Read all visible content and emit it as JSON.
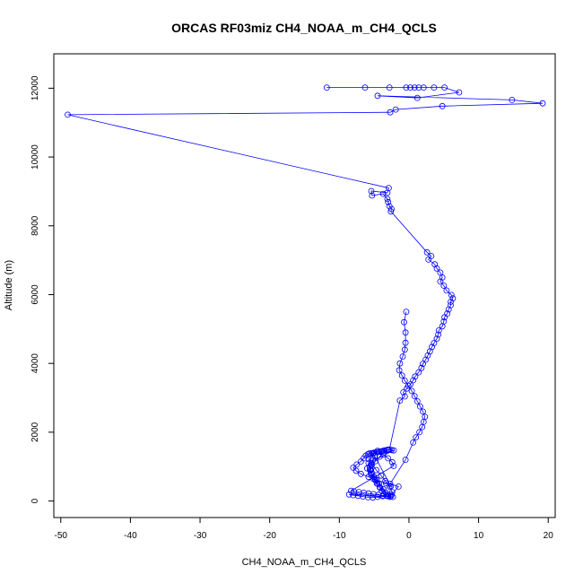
{
  "chart_data": {
    "type": "scatter",
    "title": "ORCAS RF03miz CH4_NOAA_m_CH4_QCLS",
    "xlabel": "CH4_NOAA_m_CH4_QCLS",
    "ylabel": "Altitude (m)",
    "xlim": [
      -51,
      21
    ],
    "ylim": [
      -480,
      13000
    ],
    "xticks": [
      -50,
      -40,
      -30,
      -20,
      -10,
      0,
      10,
      20
    ],
    "yticks": [
      0,
      2000,
      4000,
      6000,
      8000,
      10000,
      12000
    ],
    "grid": false,
    "legend": "none",
    "colors": {
      "series": "#0000ff",
      "axes": "#000000"
    },
    "series": [
      {
        "style": "points-and-line",
        "x": [
          -11.8,
          -6.3,
          -2.8,
          -0.4,
          0.2,
          0.8,
          1.4,
          2.1,
          3.6,
          5.1,
          7.2,
          1.2,
          -4.5,
          14.8,
          19.2,
          4.8,
          -1.9,
          -2.7,
          -49,
          -2.9,
          -3.1,
          -5.4,
          -5.3,
          -3.7,
          -3.1,
          -3.0,
          -2.8,
          -2.5,
          -2.6,
          2.6,
          3.2,
          2.8,
          3.7,
          4.0,
          4.5,
          4.8,
          4.5,
          5.0,
          5.4,
          6.1,
          6.3,
          6.0,
          6.0,
          5.7,
          5.5,
          5.1,
          5.0,
          4.8,
          4.3,
          4.2,
          4.0,
          3.6,
          3.3,
          3.0,
          2.7,
          2.4,
          2.0,
          1.8,
          1.4,
          0.9,
          0.6,
          0.2,
          -0.3,
          -0.8,
          -0.6,
          -1.3,
          -2.8,
          -3.0,
          -3.2,
          -3.5,
          -3.7,
          -3.9,
          -4.0,
          -4.3,
          -4.6,
          -4.9,
          -5.1,
          -5.4,
          -5.7,
          -5.9,
          -6.2,
          -6.5,
          -6.9,
          -7.5,
          -8.0,
          -7.6,
          -6.9,
          -5.8,
          -4.6,
          -3.3,
          -2.6,
          -4.9,
          -5.2,
          -5.4,
          -5.6,
          -5.5,
          -5.3,
          -5.0,
          -4.8,
          -4.5,
          -4.2,
          -3.9,
          -3.6,
          -3.2,
          -2.7,
          -3.4,
          -4.1,
          -4.6,
          -5.1,
          -5.4,
          -5.6,
          -5.4,
          -4.8,
          -4.2,
          -3.6,
          -3.0,
          -2.5,
          -2.2,
          -5.8,
          -6.0,
          -5.5,
          -4.9,
          -4.3,
          -3.7,
          -3.1,
          -2.6,
          -2.4,
          -2.8,
          -3.4,
          -4.0,
          -4.7,
          -5.3,
          -5.8,
          -5.2,
          -4.5,
          -3.7,
          -3.0,
          -2.4,
          -2.2,
          -8.3,
          -7.9,
          -7.2,
          -6.5,
          -5.8,
          -5.1,
          -4.4,
          -3.7,
          -3.0,
          -2.3,
          -8.6,
          -8.0,
          -7.3,
          -6.6,
          -5.9,
          -5.2,
          -4.5,
          -3.8,
          -3.1,
          -2.5,
          -1.5,
          -2.7,
          -0.5,
          0.6,
          1.0,
          1.5,
          1.9,
          2.1,
          2.3,
          2.0,
          1.6,
          1.2,
          0.8,
          0.4,
          -0.1,
          -0.6,
          -1.0,
          -1.4,
          -1.3,
          -0.9,
          -0.6,
          -0.5,
          -0.5,
          -0.7,
          -0.4
        ],
        "y": [
          12020,
          12020,
          12020,
          12020,
          12020,
          12020,
          12020,
          12020,
          12020,
          12020,
          11880,
          11720,
          11780,
          11660,
          11560,
          11480,
          11380,
          11300,
          11230,
          9100,
          8960,
          9010,
          8880,
          8930,
          8780,
          8690,
          8570,
          8490,
          8420,
          7230,
          7120,
          7020,
          6880,
          6760,
          6640,
          6500,
          6380,
          6260,
          6120,
          5990,
          5890,
          5790,
          5690,
          5570,
          5450,
          5340,
          5220,
          5080,
          4960,
          4840,
          4720,
          4590,
          4480,
          4350,
          4230,
          4110,
          3990,
          3870,
          3740,
          3620,
          3510,
          3390,
          3270,
          3160,
          3040,
          2920,
          1500,
          1490,
          1480,
          1470,
          1460,
          1450,
          1440,
          1430,
          1420,
          1410,
          1400,
          1390,
          1380,
          1360,
          1320,
          1240,
          1150,
          1060,
          970,
          880,
          790,
          700,
          610,
          520,
          430,
          1300,
          1200,
          1100,
          1000,
          900,
          800,
          700,
          600,
          500,
          400,
          300,
          200,
          150,
          120,
          250,
          380,
          510,
          640,
          770,
          900,
          1030,
          1160,
          1290,
          1420,
          1490,
          1480,
          1470,
          1100,
          950,
          800,
          650,
          500,
          350,
          200,
          140,
          260,
          420,
          580,
          740,
          900,
          1060,
          1220,
          1380,
          1460,
          1350,
          1240,
          1130,
          1020,
          300,
          280,
          260,
          240,
          220,
          200,
          180,
          160,
          140,
          120,
          190,
          170,
          150,
          130,
          110,
          100,
          120,
          140,
          160,
          180,
          420,
          500,
          1200,
          1700,
          1850,
          2000,
          2150,
          2300,
          2450,
          2600,
          2750,
          2900,
          3050,
          3200,
          3350,
          3500,
          3650,
          3800,
          4000,
          4200,
          4400,
          4600,
          4900,
          5200,
          5500
        ]
      }
    ]
  }
}
